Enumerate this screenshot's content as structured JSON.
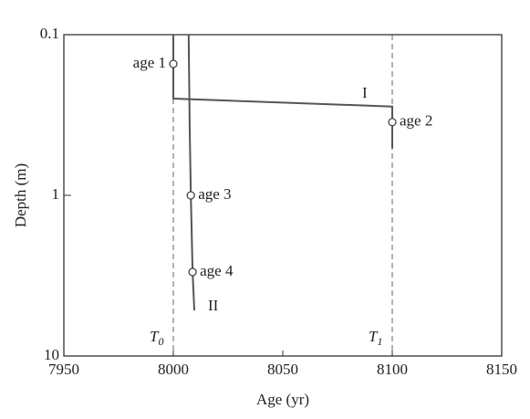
{
  "chart_data": {
    "type": "line",
    "xlabel": "Age (yr)",
    "ylabel": "Depth (m)",
    "xlim": [
      7950,
      8150
    ],
    "xticks": [
      7950,
      8000,
      8050,
      8100,
      8150
    ],
    "ylim": [
      0.1,
      10
    ],
    "yticks": [
      0.1,
      1,
      10
    ],
    "y_scale": "log",
    "y_inverted": true,
    "color": "#555555",
    "series": [
      {
        "name": "I",
        "x": [
          8000,
          8000,
          8100,
          8100
        ],
        "values": [
          0.1,
          0.25,
          0.28,
          0.51
        ]
      },
      {
        "name": "II",
        "x": [
          8007,
          8007.5,
          8008,
          8008.8,
          8009.6
        ],
        "values": [
          0.1,
          0.4,
          1,
          3,
          5.2
        ]
      }
    ],
    "points": [
      {
        "label": "age 1",
        "x": 8000,
        "y": 0.152
      },
      {
        "label": "age 2",
        "x": 8100,
        "y": 0.35
      },
      {
        "label": "age 3",
        "x": 8008,
        "y": 1
      },
      {
        "label": "age 4",
        "x": 8008.8,
        "y": 3
      }
    ],
    "vlines": [
      {
        "x": 8000,
        "label": "T",
        "sub": "0"
      },
      {
        "x": 8100,
        "label": "T",
        "sub": "1"
      }
    ]
  }
}
